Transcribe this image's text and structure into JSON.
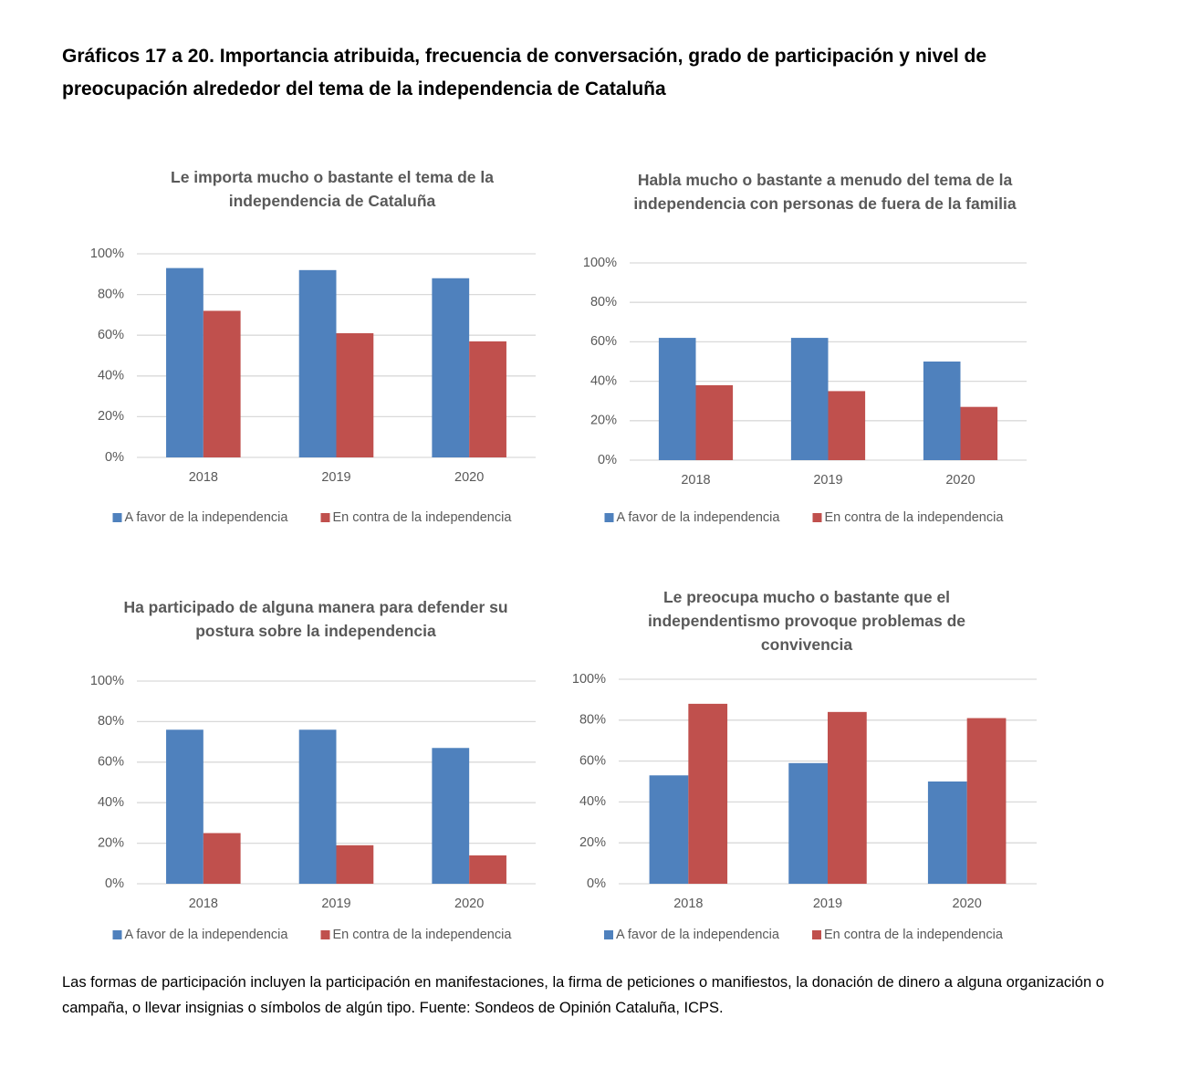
{
  "title": "Gráficos 17 a 20. Importancia atribuida, frecuencia de conversación, grado de participación y nivel de preocupación alrededor del tema de la independencia de Cataluña",
  "note": "Las formas de participación incluyen la participación en manifestaciones, la firma de peticiones o manifiestos, la donación de dinero a alguna organización o campaña, o llevar insignias o símbolos de algún tipo. Fuente: Sondeos de Opinión Cataluña, ICPS.",
  "chart_data": [
    {
      "type": "bar",
      "title": "Le importa mucho o bastante el tema de la independencia de Cataluña",
      "categories": [
        "2018",
        "2019",
        "2020"
      ],
      "series": [
        {
          "name": "A favor de la independencia",
          "color": "#4f81bd",
          "values": [
            93,
            92,
            88
          ]
        },
        {
          "name": "En contra de la independencia",
          "color": "#c0504d",
          "values": [
            72,
            61,
            57
          ]
        }
      ],
      "ylim": [
        0,
        100
      ],
      "yticks": [
        {
          "value": 0,
          "label": "0%"
        },
        {
          "value": 20,
          "label": "20%"
        },
        {
          "value": 40,
          "label": "40%"
        },
        {
          "value": 60,
          "label": "60%"
        },
        {
          "value": 80,
          "label": "80%"
        },
        {
          "value": 100,
          "label": "100%"
        }
      ],
      "grid": true,
      "legend": "bottom"
    },
    {
      "type": "bar",
      "title": "Habla mucho o bastante a menudo del tema de la independencia con personas de fuera de la familia",
      "categories": [
        "2018",
        "2019",
        "2020"
      ],
      "series": [
        {
          "name": "A favor de la independencia",
          "color": "#4f81bd",
          "values": [
            62,
            62,
            50
          ]
        },
        {
          "name": "En contra de la independencia",
          "color": "#c0504d",
          "values": [
            38,
            35,
            27
          ]
        }
      ],
      "ylim": [
        0,
        100
      ],
      "yticks": [
        {
          "value": 0,
          "label": "0%"
        },
        {
          "value": 20,
          "label": "20%"
        },
        {
          "value": 40,
          "label": "40%"
        },
        {
          "value": 60,
          "label": "60%"
        },
        {
          "value": 80,
          "label": "80%"
        },
        {
          "value": 100,
          "label": "100%"
        }
      ],
      "grid": true,
      "legend": "bottom"
    },
    {
      "type": "bar",
      "title": "Ha participado de alguna manera para defender su postura sobre la independencia",
      "categories": [
        "2018",
        "2019",
        "2020"
      ],
      "series": [
        {
          "name": "A favor de la independencia",
          "color": "#4f81bd",
          "values": [
            76,
            76,
            67
          ]
        },
        {
          "name": "En contra de la independencia",
          "color": "#c0504d",
          "values": [
            25,
            19,
            14
          ]
        }
      ],
      "ylim": [
        0,
        100
      ],
      "yticks": [
        {
          "value": 0,
          "label": "0%"
        },
        {
          "value": 20,
          "label": "20%"
        },
        {
          "value": 40,
          "label": "40%"
        },
        {
          "value": 60,
          "label": "60%"
        },
        {
          "value": 80,
          "label": "80%"
        },
        {
          "value": 100,
          "label": "100%"
        }
      ],
      "grid": true,
      "legend": "bottom"
    },
    {
      "type": "bar",
      "title": "Le preocupa mucho o bastante que el independentismo provoque problemas de convivencia",
      "categories": [
        "2018",
        "2019",
        "2020"
      ],
      "series": [
        {
          "name": "A favor de la independencia",
          "color": "#4f81bd",
          "values": [
            53,
            59,
            50
          ]
        },
        {
          "name": "En contra de la independencia",
          "color": "#c0504d",
          "values": [
            88,
            84,
            81
          ]
        }
      ],
      "ylim": [
        0,
        100
      ],
      "yticks": [
        {
          "value": 0,
          "label": "0%"
        },
        {
          "value": 20,
          "label": "20%"
        },
        {
          "value": 40,
          "label": "40%"
        },
        {
          "value": 60,
          "label": "60%"
        },
        {
          "value": 80,
          "label": "80%"
        },
        {
          "value": 100,
          "label": "100%"
        }
      ],
      "grid": true,
      "legend": "bottom"
    }
  ]
}
